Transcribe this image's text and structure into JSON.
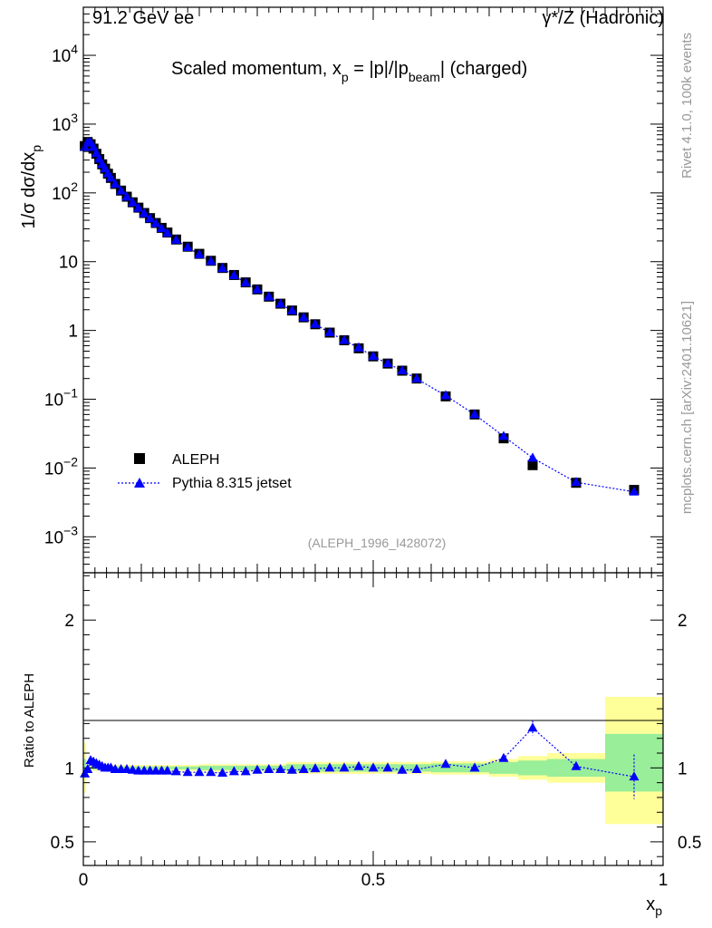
{
  "header": {
    "left_title": "91.2 GeV ee",
    "right_title": "γ*/Z (Hadronic)"
  },
  "side_labels": {
    "rivet": "Rivet 4.1.0,  100k events",
    "mcplots": "mcplots.cern.ch [arXiv:2401.10621]"
  },
  "chart_data": [
    {
      "type": "scatter",
      "title": "Scaled momentum, x_p = |p|/|p_beam| (charged)",
      "title_parts": {
        "a": "Scaled momentum, x",
        "sub1": "p",
        "b": " = |p|/|p",
        "sub2": "beam",
        "c": "| (charged)"
      },
      "ylabel": "1/σ  dσ/dx_p",
      "ylabel_parts": {
        "a": "1/σ  dσ/dx",
        "sub": "p"
      },
      "yscale": "log",
      "ylim": [
        0.0003,
        50000
      ],
      "xlim": [
        0,
        1
      ],
      "y_tick_labels": [
        "10^-3",
        "10^-2",
        "10^-1",
        "1",
        "10",
        "10^2",
        "10^3",
        "10^4"
      ],
      "watermark": "(ALEPH_1996_I428072)",
      "legend": {
        "position": "lower-left",
        "entries": [
          "ALEPH",
          "Pythia 8.315 jetset"
        ]
      },
      "series": [
        {
          "name": "ALEPH",
          "marker": "square",
          "color": "#000000",
          "points": [
            [
              0.0025,
              480
            ],
            [
              0.0075,
              550
            ],
            [
              0.0125,
              510
            ],
            [
              0.0175,
              440
            ],
            [
              0.0225,
              370
            ],
            [
              0.0275,
              310
            ],
            [
              0.0325,
              260
            ],
            [
              0.0375,
              225
            ],
            [
              0.0425,
              190
            ],
            [
              0.0475,
              165
            ],
            [
              0.055,
              135
            ],
            [
              0.065,
              108
            ],
            [
              0.075,
              88
            ],
            [
              0.085,
              73
            ],
            [
              0.095,
              61
            ],
            [
              0.105,
              51
            ],
            [
              0.115,
              43
            ],
            [
              0.125,
              36.5
            ],
            [
              0.135,
              31
            ],
            [
              0.145,
              26.5
            ],
            [
              0.16,
              21
            ],
            [
              0.18,
              16.5
            ],
            [
              0.2,
              13
            ],
            [
              0.22,
              10.3
            ],
            [
              0.24,
              8.1
            ],
            [
              0.26,
              6.4
            ],
            [
              0.28,
              5.0
            ],
            [
              0.3,
              3.95
            ],
            [
              0.32,
              3.1
            ],
            [
              0.34,
              2.45
            ],
            [
              0.36,
              1.95
            ],
            [
              0.38,
              1.55
            ],
            [
              0.4,
              1.23
            ],
            [
              0.425,
              0.93
            ],
            [
              0.45,
              0.72
            ],
            [
              0.475,
              0.55
            ],
            [
              0.5,
              0.42
            ],
            [
              0.525,
              0.33
            ],
            [
              0.55,
              0.26
            ],
            [
              0.575,
              0.2
            ],
            [
              0.625,
              0.11
            ],
            [
              0.675,
              0.06
            ],
            [
              0.725,
              0.027
            ],
            [
              0.775,
              0.011
            ],
            [
              0.85,
              0.0061
            ],
            [
              0.95,
              0.0048
            ]
          ]
        },
        {
          "name": "Pythia 8.315 jetset",
          "marker": "triangle",
          "line": "dotted",
          "color": "#0000ff",
          "points": [
            [
              0.0025,
              460
            ],
            [
              0.0075,
              545
            ],
            [
              0.0125,
              535
            ],
            [
              0.0175,
              460
            ],
            [
              0.0225,
              375
            ],
            [
              0.0275,
              312
            ],
            [
              0.0325,
              260
            ],
            [
              0.0375,
              225
            ],
            [
              0.0425,
              190
            ],
            [
              0.0475,
              165
            ],
            [
              0.055,
              134
            ],
            [
              0.065,
              107
            ],
            [
              0.075,
              87
            ],
            [
              0.085,
              72
            ],
            [
              0.095,
              60
            ],
            [
              0.105,
              50
            ],
            [
              0.115,
              42.3
            ],
            [
              0.125,
              35.9
            ],
            [
              0.135,
              30.4
            ],
            [
              0.145,
              26.0
            ],
            [
              0.16,
              20.6
            ],
            [
              0.18,
              16.1
            ],
            [
              0.2,
              12.7
            ],
            [
              0.22,
              10.1
            ],
            [
              0.24,
              7.95
            ],
            [
              0.26,
              6.3
            ],
            [
              0.28,
              4.93
            ],
            [
              0.3,
              3.91
            ],
            [
              0.32,
              3.08
            ],
            [
              0.34,
              2.43
            ],
            [
              0.36,
              1.94
            ],
            [
              0.38,
              1.54
            ],
            [
              0.4,
              1.23
            ],
            [
              0.425,
              0.93
            ],
            [
              0.45,
              0.72
            ],
            [
              0.475,
              0.56
            ],
            [
              0.5,
              0.42
            ],
            [
              0.525,
              0.33
            ],
            [
              0.55,
              0.26
            ],
            [
              0.575,
              0.198
            ],
            [
              0.625,
              0.113
            ],
            [
              0.675,
              0.06
            ],
            [
              0.725,
              0.029
            ],
            [
              0.775,
              0.014
            ],
            [
              0.85,
              0.0062
            ],
            [
              0.95,
              0.0045
            ]
          ]
        }
      ]
    },
    {
      "type": "scatter",
      "title": "",
      "ylabel": "Ratio to ALEPH",
      "xlabel": "x_p",
      "xlabel_parts": {
        "a": "x",
        "sub": "p"
      },
      "xlim": [
        0,
        1
      ],
      "ylim": [
        0.34,
        2.32
      ],
      "x_tick_labels": [
        "0",
        "0.5",
        "1"
      ],
      "y_tick_labels": [
        "0.5",
        "1",
        "2"
      ],
      "bands": {
        "yellow": [
          [
            0,
            0.005,
            0.83,
            1.17
          ],
          [
            0.005,
            0.2,
            0.98,
            1.02
          ],
          [
            0.2,
            0.35,
            0.975,
            1.025
          ],
          [
            0.35,
            0.6,
            0.96,
            1.04
          ],
          [
            0.6,
            0.7,
            0.955,
            1.045
          ],
          [
            0.7,
            0.75,
            0.94,
            1.06
          ],
          [
            0.75,
            0.8,
            0.92,
            1.08
          ],
          [
            0.8,
            0.9,
            0.9,
            1.1
          ],
          [
            0.9,
            1.0,
            0.62,
            1.48
          ]
        ],
        "green": [
          [
            0,
            0.005,
            0.94,
            1.06
          ],
          [
            0.005,
            0.2,
            0.99,
            1.01
          ],
          [
            0.2,
            0.35,
            0.985,
            1.015
          ],
          [
            0.35,
            0.6,
            0.975,
            1.025
          ],
          [
            0.6,
            0.7,
            0.97,
            1.03
          ],
          [
            0.7,
            0.75,
            0.96,
            1.04
          ],
          [
            0.75,
            0.8,
            0.95,
            1.05
          ],
          [
            0.8,
            0.9,
            0.94,
            1.06
          ],
          [
            0.9,
            1.0,
            0.84,
            1.23
          ]
        ]
      },
      "series": [
        {
          "name": "Pythia 8.315 jetset / ALEPH",
          "marker": "triangle",
          "line": "dotted",
          "color": "#0000ff",
          "points": [
            [
              0.0025,
              0.96
            ],
            [
              0.0075,
              0.99
            ],
            [
              0.0125,
              1.05
            ],
            [
              0.0175,
              1.04
            ],
            [
              0.0225,
              1.03
            ],
            [
              0.0275,
              1.02
            ],
            [
              0.0325,
              1.01
            ],
            [
              0.0375,
              1.0
            ],
            [
              0.0425,
              1.0
            ],
            [
              0.0475,
              1.0
            ],
            [
              0.055,
              0.99
            ],
            [
              0.065,
              0.99
            ],
            [
              0.075,
              0.99
            ],
            [
              0.085,
              0.985
            ],
            [
              0.095,
              0.98
            ],
            [
              0.105,
              0.98
            ],
            [
              0.115,
              0.98
            ],
            [
              0.125,
              0.98
            ],
            [
              0.135,
              0.98
            ],
            [
              0.145,
              0.98
            ],
            [
              0.16,
              0.975
            ],
            [
              0.18,
              0.97
            ],
            [
              0.2,
              0.97
            ],
            [
              0.22,
              0.97
            ],
            [
              0.24,
              0.965
            ],
            [
              0.26,
              0.975
            ],
            [
              0.28,
              0.975
            ],
            [
              0.3,
              0.985
            ],
            [
              0.32,
              0.99
            ],
            [
              0.34,
              0.99
            ],
            [
              0.36,
              0.985
            ],
            [
              0.38,
              0.99
            ],
            [
              0.4,
              0.995
            ],
            [
              0.425,
              1.0
            ],
            [
              0.45,
              1.0
            ],
            [
              0.475,
              1.01
            ],
            [
              0.5,
              1.0
            ],
            [
              0.525,
              1.0
            ],
            [
              0.55,
              0.985
            ],
            [
              0.575,
              0.99
            ],
            [
              0.625,
              1.025
            ],
            [
              0.675,
              1.0
            ],
            [
              0.725,
              1.065
            ],
            [
              0.775,
              1.27
            ],
            [
              0.85,
              1.01
            ],
            [
              0.95,
              0.94
            ]
          ],
          "errors": {
            "0.775": 0.05,
            "0.95": 0.15
          }
        }
      ]
    }
  ]
}
